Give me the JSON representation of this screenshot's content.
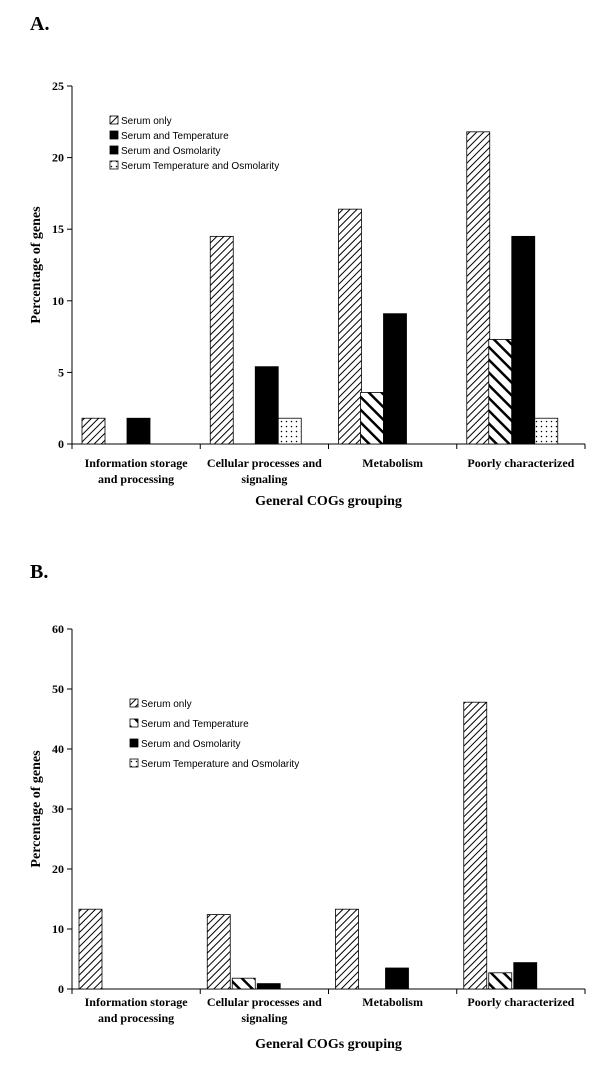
{
  "chart_data": [
    {
      "panel_label": "A.",
      "type": "bar",
      "categories": [
        [
          "Information storage",
          "and processing"
        ],
        [
          "Cellular processes and",
          "signaling"
        ],
        [
          "Metabolism"
        ],
        [
          "Poorly characterized"
        ]
      ],
      "series": [
        {
          "name": "Serum only",
          "pattern": "diag-fine",
          "values": [
            1.8,
            14.5,
            16.4,
            21.8
          ]
        },
        {
          "name": "Serum and Temperature",
          "pattern": "diag-thick",
          "values": [
            0,
            0,
            3.6,
            7.3
          ]
        },
        {
          "name": "Serum and Osmolarity",
          "pattern": "solid",
          "values": [
            1.8,
            5.4,
            9.1,
            14.5
          ]
        },
        {
          "name": "Serum Temperature and Osmolarity",
          "pattern": "dots",
          "values": [
            0,
            1.8,
            0,
            1.8
          ]
        }
      ],
      "legend_swatch_patterns": [
        "diag-fine",
        "solid",
        "solid",
        "dots"
      ],
      "ylabel": "Percentage of genes",
      "xlabel": "General COGs grouping",
      "ylim": [
        0,
        25
      ],
      "yticks": [
        "0",
        "5",
        "10",
        "15",
        "20",
        "25"
      ],
      "grid": false,
      "legend_position": "top-left"
    },
    {
      "panel_label": "B.",
      "type": "bar",
      "categories": [
        [
          "Information storage",
          "and processing"
        ],
        [
          "Cellular processes and",
          "signaling"
        ],
        [
          "Metabolism"
        ],
        [
          "Poorly characterized"
        ]
      ],
      "series": [
        {
          "name": "Serum only",
          "pattern": "diag-fine",
          "values": [
            13.3,
            12.4,
            13.3,
            47.8
          ]
        },
        {
          "name": "Serum and Temperature",
          "pattern": "diag-thick",
          "values": [
            0,
            1.8,
            0,
            2.7
          ]
        },
        {
          "name": "Serum and Osmolarity",
          "pattern": "solid",
          "values": [
            0,
            0.9,
            3.5,
            4.4
          ]
        },
        {
          "name": "Serum Temperature and Osmolarity",
          "pattern": "dots",
          "values": [
            0,
            0,
            0,
            0
          ]
        }
      ],
      "legend_swatch_patterns": [
        "diag-fine",
        "diag-thick",
        "solid",
        "dots"
      ],
      "ylabel": "Percentage of genes",
      "xlabel": "General COGs grouping",
      "ylim": [
        0,
        60
      ],
      "yticks": [
        "0",
        "10",
        "20",
        "30",
        "40",
        "50",
        "60"
      ],
      "grid": false,
      "legend_position": "top-left"
    }
  ]
}
